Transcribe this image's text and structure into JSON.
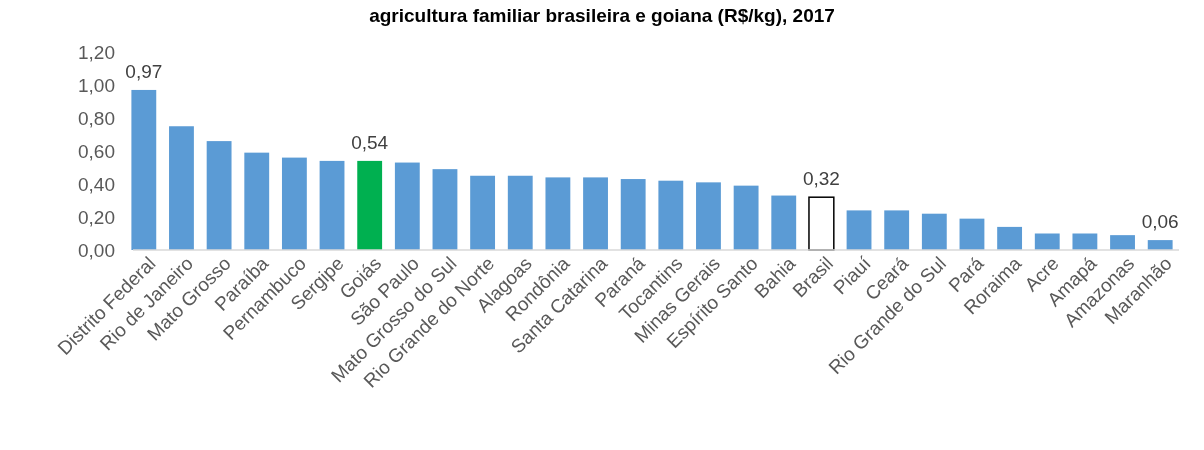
{
  "chart_data": {
    "type": "bar",
    "title": "agricultura familiar brasileira e goiana (R$/kg), 2017",
    "categories": [
      "Distrito Federal",
      "Rio de Janeiro",
      "Mato Grosso",
      "Paraíba",
      "Pernambuco",
      "Sergipe",
      "Goiás",
      "São Paulo",
      "Mato Grosso do Sul",
      "Rio Grande do Norte",
      "Alagoas",
      "Rondônia",
      "Santa Catarina",
      "Paraná",
      "Tocantins",
      "Minas Gerais",
      "Espírito Santo",
      "Bahia",
      "Brasil",
      "Piauí",
      "Ceará",
      "Rio Grande do Sul",
      "Pará",
      "Roraima",
      "Acre",
      "Amapá",
      "Amazonas",
      "Maranhão"
    ],
    "values": [
      0.97,
      0.75,
      0.66,
      0.59,
      0.56,
      0.54,
      0.54,
      0.53,
      0.49,
      0.45,
      0.45,
      0.44,
      0.44,
      0.43,
      0.42,
      0.41,
      0.39,
      0.33,
      0.32,
      0.24,
      0.24,
      0.22,
      0.19,
      0.14,
      0.1,
      0.1,
      0.09,
      0.06
    ],
    "colors": [
      "#5b9bd5",
      "#5b9bd5",
      "#5b9bd5",
      "#5b9bd5",
      "#5b9bd5",
      "#5b9bd5",
      "#00b050",
      "#5b9bd5",
      "#5b9bd5",
      "#5b9bd5",
      "#5b9bd5",
      "#5b9bd5",
      "#5b9bd5",
      "#5b9bd5",
      "#5b9bd5",
      "#5b9bd5",
      "#5b9bd5",
      "#5b9bd5",
      "#ffffff",
      "#5b9bd5",
      "#5b9bd5",
      "#5b9bd5",
      "#5b9bd5",
      "#5b9bd5",
      "#5b9bd5",
      "#5b9bd5",
      "#5b9bd5",
      "#5b9bd5"
    ],
    "value_labels": [
      "0,97",
      null,
      null,
      null,
      null,
      null,
      "0,54",
      null,
      null,
      null,
      null,
      null,
      null,
      null,
      null,
      null,
      null,
      null,
      "0,32",
      null,
      null,
      null,
      null,
      null,
      null,
      null,
      null,
      "0,06"
    ],
    "ylim": [
      0,
      1.2
    ],
    "yticks": [
      {
        "value": 0,
        "label": "0,00"
      },
      {
        "value": 0.2,
        "label": "0,20"
      },
      {
        "value": 0.4,
        "label": "0,40"
      },
      {
        "value": 0.6,
        "label": "0,60"
      },
      {
        "value": 0.8,
        "label": "0,80"
      },
      {
        "value": 1,
        "label": "1,00"
      },
      {
        "value": 1.2,
        "label": "1,20"
      }
    ],
    "grid": false
  }
}
